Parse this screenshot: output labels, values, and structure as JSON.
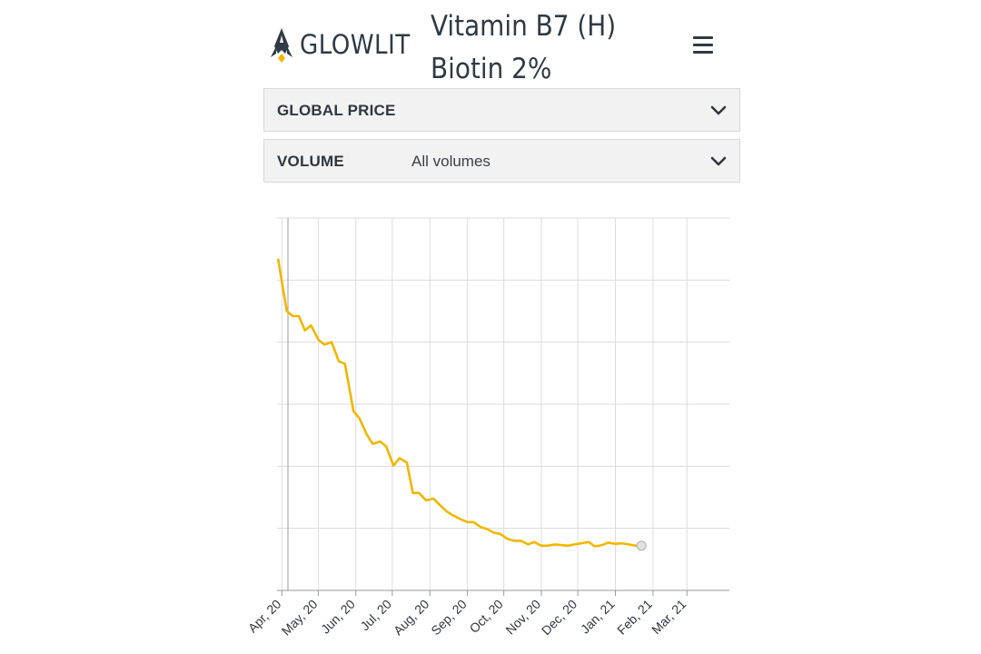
{
  "header": {
    "brand": "GLOWLIT",
    "title_line1": "Vitamin B7 (H)",
    "title_line2": "Biotin 2%",
    "menu_icon": "hamburger-menu-icon"
  },
  "filters": {
    "price": {
      "label": "GLOBAL PRICE",
      "value": ""
    },
    "volume": {
      "label": "VOLUME",
      "value": "All volumes"
    }
  },
  "colors": {
    "line": "#f2b600",
    "logo_accent": "#f5b400",
    "text": "#2f3a45"
  },
  "chart_data": {
    "type": "line",
    "title": "",
    "xlabel": "",
    "ylabel": "",
    "grid": true,
    "y_tick_labels_visible": false,
    "x_ticks": [
      "Apr, 20",
      "May, 20",
      "Jun, 20",
      "Jul, 20",
      "Aug, 20",
      "Sep, 20",
      "Oct, 20",
      "Nov, 20",
      "Dec, 20",
      "Jan, 21",
      "Feb, 21",
      "Mar, 21"
    ],
    "x_range": [
      "2020-03-28",
      "2021-04-05"
    ],
    "series": [
      {
        "values": [
          [
            "2020-03-29",
            53.3
          ],
          [
            "2020-04-05",
            45.0
          ],
          [
            "2020-04-10",
            44.2
          ],
          [
            "2020-04-15",
            44.2
          ],
          [
            "2020-04-20",
            41.9
          ],
          [
            "2020-04-25",
            42.7
          ],
          [
            "2020-05-01",
            40.4
          ],
          [
            "2020-05-06",
            39.6
          ],
          [
            "2020-05-12",
            40.0
          ],
          [
            "2020-05-18",
            36.9
          ],
          [
            "2020-05-23",
            36.5
          ],
          [
            "2020-05-30",
            28.9
          ],
          [
            "2020-06-04",
            27.7
          ],
          [
            "2020-06-10",
            25.1
          ],
          [
            "2020-06-15",
            23.6
          ],
          [
            "2020-06-21",
            24.0
          ],
          [
            "2020-06-26",
            23.2
          ],
          [
            "2020-07-02",
            20.1
          ],
          [
            "2020-07-07",
            21.3
          ],
          [
            "2020-07-13",
            20.6
          ],
          [
            "2020-07-18",
            15.7
          ],
          [
            "2020-07-23",
            15.7
          ],
          [
            "2020-07-29",
            14.5
          ],
          [
            "2020-08-04",
            14.8
          ],
          [
            "2020-08-09",
            13.8
          ],
          [
            "2020-08-15",
            12.7
          ],
          [
            "2020-08-20",
            12.1
          ],
          [
            "2020-08-26",
            11.5
          ],
          [
            "2020-09-01",
            11.0
          ],
          [
            "2020-09-06",
            11.0
          ],
          [
            "2020-09-12",
            10.2
          ],
          [
            "2020-09-17",
            9.9
          ],
          [
            "2020-09-23",
            9.3
          ],
          [
            "2020-09-28",
            9.1
          ],
          [
            "2020-10-04",
            8.3
          ],
          [
            "2020-10-09",
            8.0
          ],
          [
            "2020-10-15",
            8.0
          ],
          [
            "2020-10-21",
            7.4
          ],
          [
            "2020-10-26",
            7.8
          ],
          [
            "2020-11-01",
            7.2
          ],
          [
            "2020-11-06",
            7.2
          ],
          [
            "2020-11-12",
            7.4
          ],
          [
            "2020-11-17",
            7.3
          ],
          [
            "2020-11-23",
            7.2
          ],
          [
            "2020-11-28",
            7.4
          ],
          [
            "2020-12-04",
            7.6
          ],
          [
            "2020-12-10",
            7.8
          ],
          [
            "2020-12-15",
            7.1
          ],
          [
            "2020-12-21",
            7.3
          ],
          [
            "2020-12-26",
            7.7
          ],
          [
            "2021-01-01",
            7.5
          ],
          [
            "2021-01-06",
            7.6
          ],
          [
            "2021-01-12",
            7.4
          ],
          [
            "2021-01-18",
            7.2
          ]
        ]
      }
    ]
  }
}
